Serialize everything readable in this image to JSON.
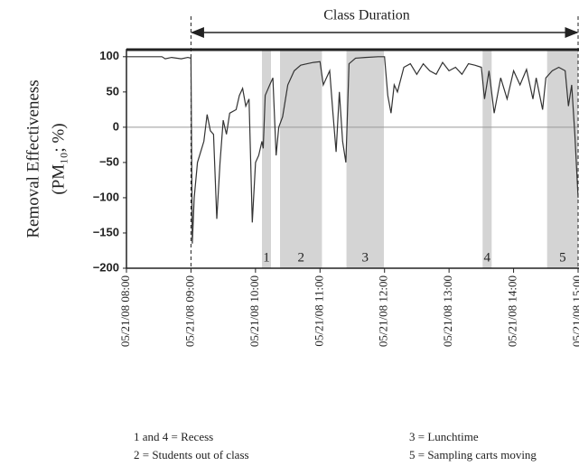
{
  "chart_data": {
    "type": "line",
    "annotation": "Class Duration",
    "ylabel": "Removal Effectiveness",
    "ylabel2": "(PM₁₀; %)",
    "xlim": [
      8,
      15.0
    ],
    "ylim": [
      -200,
      110
    ],
    "yticks": [
      100,
      50,
      0,
      {
        "value": -50,
        "label": "−50"
      },
      {
        "value": -100,
        "label": "−100"
      },
      {
        "value": -150,
        "label": "−150"
      },
      {
        "value": -200,
        "label": "−200"
      }
    ],
    "xticks": [
      {
        "value": 8,
        "label": "05/21/08 08:00"
      },
      {
        "value": 9,
        "label": "05/21/08 09:00"
      },
      {
        "value": 10,
        "label": "05/21/08 10:00"
      },
      {
        "value": 11,
        "label": "05/21/08 11:00"
      },
      {
        "value": 12,
        "label": "05/21/08 12:00"
      },
      {
        "value": 13,
        "label": "05/21/08 13:00"
      },
      {
        "value": 14,
        "label": "05/21/08 14:00"
      },
      {
        "value": 15,
        "label": "05/21/08 15:00"
      }
    ],
    "class_start": 9,
    "class_end": 15,
    "shaded": [
      {
        "start": 10.1,
        "end": 10.24,
        "label": "1"
      },
      {
        "start": 10.38,
        "end": 11.03,
        "label": "2"
      },
      {
        "start": 11.41,
        "end": 11.99,
        "label": "3"
      },
      {
        "start": 13.52,
        "end": 13.66,
        "label": "4"
      },
      {
        "start": 14.52,
        "end": 15.0,
        "label": "5"
      }
    ],
    "notes": [
      "1 and 4 = Recess",
      "2 = Students out of class",
      "3 = Lunchtime",
      "5 = Sampling carts moving"
    ],
    "color": "#333333",
    "x": [
      8.0,
      8.3,
      8.55,
      8.6,
      8.7,
      8.85,
      8.95,
      9.0,
      9.02,
      9.05,
      9.1,
      9.2,
      9.25,
      9.3,
      9.35,
      9.4,
      9.45,
      9.5,
      9.55,
      9.6,
      9.7,
      9.75,
      9.8,
      9.85,
      9.9,
      9.95,
      10.0,
      10.05,
      10.1,
      10.12,
      10.15,
      10.22,
      10.27,
      10.32,
      10.36,
      10.42,
      10.5,
      10.6,
      10.7,
      10.8,
      10.9,
      11.0,
      11.05,
      11.1,
      11.15,
      11.2,
      11.25,
      11.3,
      11.35,
      11.4,
      11.45,
      11.55,
      11.7,
      11.9,
      12.0,
      12.05,
      12.1,
      12.15,
      12.2,
      12.3,
      12.4,
      12.5,
      12.6,
      12.7,
      12.8,
      12.9,
      13.0,
      13.1,
      13.2,
      13.3,
      13.4,
      13.5,
      13.55,
      13.62,
      13.7,
      13.8,
      13.9,
      14.0,
      14.1,
      14.2,
      14.3,
      14.35,
      14.45,
      14.5,
      14.6,
      14.7,
      14.8,
      14.85,
      14.9,
      14.95,
      15.0
    ],
    "values": [
      100,
      100,
      100,
      97,
      99,
      97,
      99,
      98,
      -165,
      -100,
      -50,
      -20,
      18,
      -5,
      -10,
      -130,
      -50,
      10,
      -10,
      20,
      25,
      45,
      55,
      30,
      40,
      -135,
      -50,
      -40,
      -20,
      -30,
      45,
      60,
      70,
      -40,
      0,
      15,
      60,
      80,
      88,
      90,
      92,
      93,
      60,
      70,
      80,
      20,
      -35,
      50,
      -20,
      -50,
      90,
      98,
      99,
      100,
      100,
      45,
      20,
      60,
      50,
      85,
      90,
      75,
      90,
      80,
      75,
      92,
      80,
      85,
      75,
      90,
      88,
      85,
      40,
      80,
      20,
      70,
      40,
      80,
      60,
      82,
      40,
      70,
      25,
      70,
      80,
      85,
      80,
      30,
      60,
      -10,
      -100
    ]
  }
}
